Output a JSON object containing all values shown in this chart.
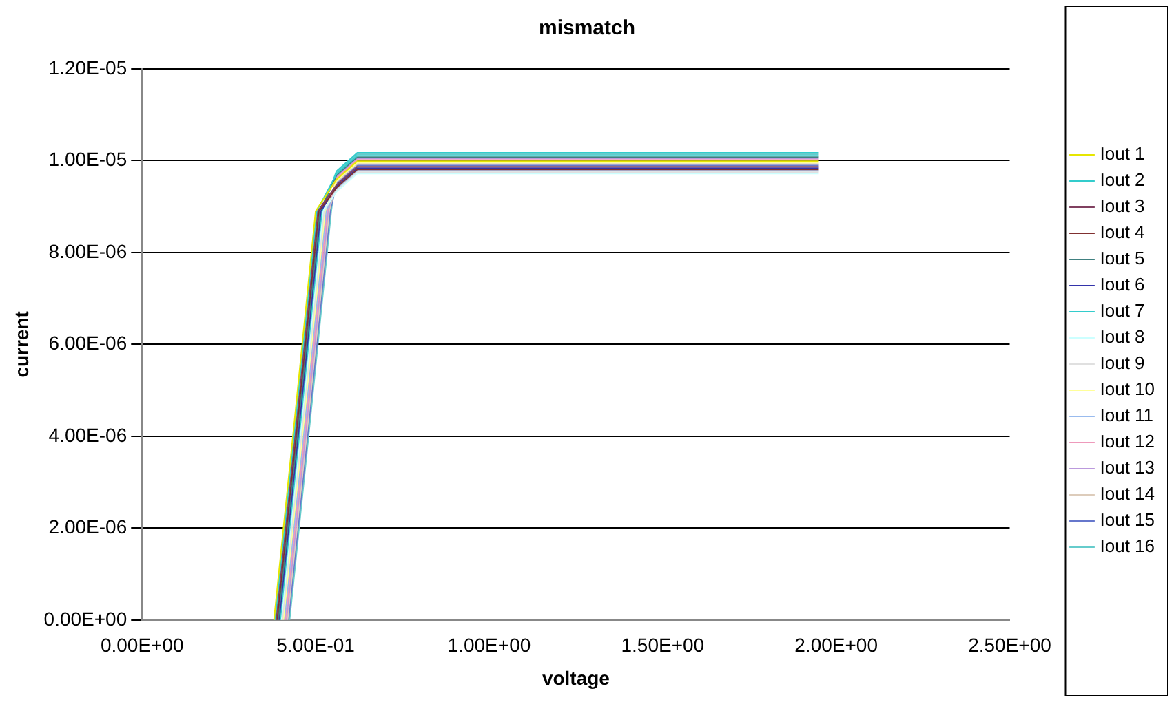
{
  "chart_data": {
    "type": "line",
    "title": "mismatch",
    "xlabel": "voltage",
    "ylabel": "current",
    "series": [
      {
        "name": "Iout 1",
        "color": "#e6e600",
        "x": [
          0.38,
          0.44,
          0.5,
          0.56,
          0.62,
          1.0,
          1.5,
          1.95
        ],
        "values": [
          0,
          4.4e-06,
          8.9e-06,
          9.59e-06,
          9.99e-06,
          9.99e-06,
          9.99e-06,
          9.99e-06
        ]
      },
      {
        "name": "Iout 2",
        "color": "#33cccc",
        "x": [
          0.383,
          0.443,
          0.503,
          0.56,
          0.62,
          1.0,
          1.5,
          1.95
        ],
        "values": [
          0,
          4.4e-06,
          8.9e-06,
          9.71e-06,
          1.011e-05,
          1.011e-05,
          1.011e-05,
          1.011e-05
        ]
      },
      {
        "name": "Iout 3",
        "color": "#804060",
        "x": [
          0.386,
          0.446,
          0.506,
          0.56,
          0.62,
          1.0,
          1.5,
          1.95
        ],
        "values": [
          0,
          4.4e-06,
          8.9e-06,
          9.47e-06,
          9.87e-06,
          9.87e-06,
          9.87e-06,
          9.87e-06
        ]
      },
      {
        "name": "Iout 4",
        "color": "#803030",
        "x": [
          0.389,
          0.449,
          0.509,
          0.56,
          0.62,
          1.0,
          1.5,
          1.95
        ],
        "values": [
          0,
          4.4e-06,
          8.9e-06,
          9.41e-06,
          9.81e-06,
          9.81e-06,
          9.81e-06,
          9.81e-06
        ]
      },
      {
        "name": "Iout 5",
        "color": "#408080",
        "x": [
          0.392,
          0.452,
          0.512,
          0.56,
          0.62,
          1.0,
          1.5,
          1.95
        ],
        "values": [
          0,
          4.4e-06,
          8.9e-06,
          9.68e-06,
          1.008e-05,
          1.008e-05,
          1.008e-05,
          1.008e-05
        ]
      },
      {
        "name": "Iout 6",
        "color": "#3333aa",
        "x": [
          0.395,
          0.455,
          0.515,
          0.56,
          0.62,
          1.0,
          1.5,
          1.95
        ],
        "values": [
          0,
          4.4e-06,
          8.9e-06,
          9.44e-06,
          9.84e-06,
          9.84e-06,
          9.84e-06,
          9.84e-06
        ]
      },
      {
        "name": "Iout 7",
        "color": "#33cccc",
        "x": [
          0.398,
          0.458,
          0.518,
          0.56,
          0.62,
          1.0,
          1.5,
          1.95
        ],
        "values": [
          0,
          4.4e-06,
          8.9e-06,
          9.77e-06,
          1.017e-05,
          1.017e-05,
          1.017e-05,
          1.017e-05
        ]
      },
      {
        "name": "Iout 8",
        "color": "#ccffff",
        "x": [
          0.401,
          0.461,
          0.521,
          0.56,
          0.62,
          1.0,
          1.5,
          1.95
        ],
        "values": [
          0,
          4.4e-06,
          8.9e-06,
          9.32e-06,
          9.72e-06,
          9.72e-06,
          9.72e-06,
          9.72e-06
        ]
      },
      {
        "name": "Iout 9",
        "color": "#e0e0e0",
        "x": [
          0.404,
          0.464,
          0.524,
          0.56,
          0.62,
          1.0,
          1.5,
          1.95
        ],
        "values": [
          0,
          4.4e-06,
          8.9e-06,
          9.35e-06,
          9.75e-06,
          9.75e-06,
          9.75e-06,
          9.75e-06
        ]
      },
      {
        "name": "Iout 10",
        "color": "#ffff99",
        "x": [
          0.407,
          0.467,
          0.527,
          0.56,
          0.62,
          1.0,
          1.5,
          1.95
        ],
        "values": [
          0,
          4.4e-06,
          8.9e-06,
          9.56e-06,
          9.96e-06,
          9.96e-06,
          9.96e-06,
          9.96e-06
        ]
      },
      {
        "name": "Iout 11",
        "color": "#99bbee",
        "x": [
          0.41,
          0.47,
          0.53,
          0.56,
          0.62,
          1.0,
          1.5,
          1.95
        ],
        "values": [
          0,
          4.4e-06,
          8.9e-06,
          9.38e-06,
          9.78e-06,
          9.78e-06,
          9.78e-06,
          9.78e-06
        ]
      },
      {
        "name": "Iout 12",
        "color": "#ee99bb",
        "x": [
          0.413,
          0.473,
          0.533,
          0.56,
          0.62,
          1.0,
          1.5,
          1.95
        ],
        "values": [
          0,
          4.4e-06,
          8.9e-06,
          9.62e-06,
          1.002e-05,
          1.002e-05,
          1.002e-05,
          1.002e-05
        ]
      },
      {
        "name": "Iout 13",
        "color": "#bb99dd",
        "x": [
          0.416,
          0.476,
          0.536,
          0.56,
          0.62,
          1.0,
          1.5,
          1.95
        ],
        "values": [
          0,
          4.4e-06,
          8.9e-06,
          9.65e-06,
          1.005e-05,
          1.005e-05,
          1.005e-05,
          1.005e-05
        ]
      },
      {
        "name": "Iout 14",
        "color": "#ddccbb",
        "x": [
          0.419,
          0.479,
          0.539,
          0.56,
          0.62,
          1.0,
          1.5,
          1.95
        ],
        "values": [
          0,
          4.4e-06,
          8.9e-06,
          9.53e-06,
          9.93e-06,
          9.93e-06,
          9.93e-06,
          9.93e-06
        ]
      },
      {
        "name": "Iout 15",
        "color": "#6677cc",
        "x": [
          0.422,
          0.482,
          0.542,
          0.56,
          0.62,
          1.0,
          1.5,
          1.95
        ],
        "values": [
          0,
          4.4e-06,
          8.9e-06,
          9.5e-06,
          9.9e-06,
          9.9e-06,
          9.9e-06,
          9.9e-06
        ]
      },
      {
        "name": "Iout 16",
        "color": "#66cccc",
        "x": [
          0.425,
          0.485,
          0.545,
          0.56,
          0.62,
          1.0,
          1.5,
          1.95
        ],
        "values": [
          0,
          4.4e-06,
          8.9e-06,
          9.74e-06,
          1.014e-05,
          1.014e-05,
          1.014e-05,
          1.014e-05
        ]
      }
    ],
    "xlim": [
      0,
      2.5
    ],
    "xticks": [
      {
        "value": 0,
        "label": "0.00E+00"
      },
      {
        "value": 0.5,
        "label": "5.00E-01"
      },
      {
        "value": 1,
        "label": "1.00E+00"
      },
      {
        "value": 1.5,
        "label": "1.50E+00"
      },
      {
        "value": 2,
        "label": "2.00E+00"
      },
      {
        "value": 2.5,
        "label": "2.50E+00"
      }
    ],
    "ylim": [
      0,
      1.2e-05
    ],
    "yticks": [
      {
        "value": 0,
        "label": "0.00E+00"
      },
      {
        "value": 2e-06,
        "label": "2.00E-06"
      },
      {
        "value": 4e-06,
        "label": "4.00E-06"
      },
      {
        "value": 6e-06,
        "label": "6.00E-06"
      },
      {
        "value": 8e-06,
        "label": "8.00E-06"
      },
      {
        "value": 1e-05,
        "label": "1.00E-05"
      },
      {
        "value": 1.2e-05,
        "label": "1.20E-05"
      }
    ],
    "grid": "y",
    "legend": "right",
    "marker": "none",
    "line_style": "solid"
  }
}
